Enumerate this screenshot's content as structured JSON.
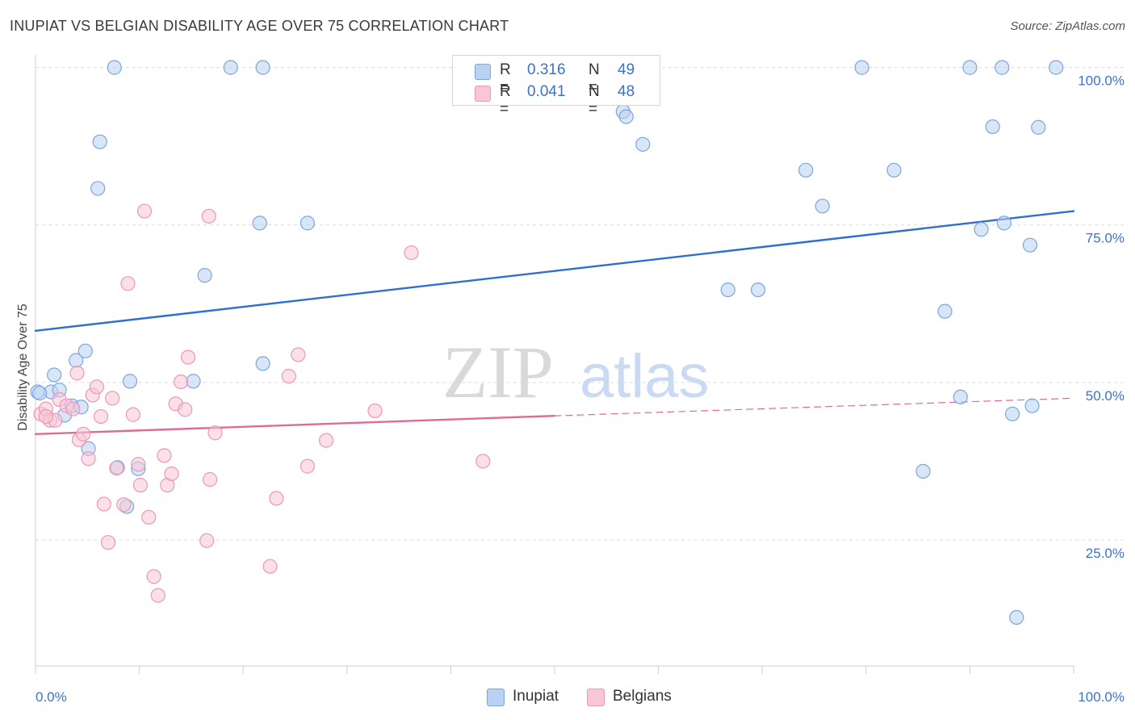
{
  "title": "INUPIAT VS BELGIAN DISABILITY AGE OVER 75 CORRELATION CHART",
  "source": "Source: ZipAtlas.com",
  "watermark": {
    "zip": "ZIP",
    "atlas": "atlas"
  },
  "colors": {
    "inupiat_fill": "#b9d1f3",
    "inupiat_stroke": "#7aa6e2",
    "inupiat_line": "#2f6fd0",
    "belgian_fill": "#f8c6d6",
    "belgian_stroke": "#ee97b6",
    "belgian_line": "#e06b96",
    "tick_text": "#3b73c9"
  },
  "stats": {
    "inupiat": {
      "r_label": "R = ",
      "r_value": "0.316",
      "n_label": "N = ",
      "n_value": "49"
    },
    "belgians": {
      "r_label": "R = ",
      "r_value": "0.041",
      "n_label": "N = ",
      "n_value": "48"
    }
  },
  "legend": {
    "inupiat": "Inupiat",
    "belgians": "Belgians"
  },
  "chart_data": {
    "type": "scatter",
    "title": "INUPIAT VS BELGIAN DISABILITY AGE OVER 75 CORRELATION CHART",
    "xlabel": "",
    "ylabel": "Disability Age Over 75",
    "xlim": [
      0,
      100
    ],
    "ylim": [
      5,
      102
    ],
    "x_tick_labels": [
      "0.0%",
      "100.0%"
    ],
    "y_ticks": [
      {
        "value": 100,
        "label": "100.0%"
      },
      {
        "value": 75,
        "label": "75.0%"
      },
      {
        "value": 50,
        "label": "50.0%"
      },
      {
        "value": 25,
        "label": "25.0%"
      }
    ],
    "grid": "horizontal dashed",
    "legend_position": "bottom-center",
    "series": [
      {
        "name": "Inupiat",
        "points": [
          [
            0.2,
            48.5
          ],
          [
            1.5,
            48.5
          ],
          [
            1.8,
            51.2
          ],
          [
            2.3,
            48.8
          ],
          [
            2.8,
            44.8
          ],
          [
            3.5,
            46.3
          ],
          [
            3.9,
            53.5
          ],
          [
            4.4,
            46.1
          ],
          [
            4.8,
            55.0
          ],
          [
            5.1,
            39.5
          ],
          [
            6.2,
            88.2
          ],
          [
            6.0,
            80.8
          ],
          [
            7.6,
            100.0
          ],
          [
            7.9,
            36.5
          ],
          [
            8.8,
            30.3
          ],
          [
            9.1,
            50.2
          ],
          [
            9.9,
            36.3
          ],
          [
            15.2,
            50.2
          ],
          [
            16.3,
            67.0
          ],
          [
            18.8,
            100.0
          ],
          [
            21.6,
            75.3
          ],
          [
            21.9,
            53.0
          ],
          [
            21.9,
            100.0
          ],
          [
            26.2,
            75.3
          ],
          [
            52.5,
            95.7
          ],
          [
            56.6,
            93.0
          ],
          [
            56.9,
            92.2
          ],
          [
            58.5,
            87.8
          ],
          [
            66.7,
            64.7
          ],
          [
            69.6,
            64.7
          ],
          [
            74.2,
            83.7
          ],
          [
            75.8,
            78.0
          ],
          [
            79.6,
            100.0
          ],
          [
            82.7,
            83.7
          ],
          [
            85.5,
            35.9
          ],
          [
            87.6,
            61.3
          ],
          [
            89.1,
            47.7
          ],
          [
            90.0,
            100.0
          ],
          [
            91.1,
            74.3
          ],
          [
            92.2,
            90.6
          ],
          [
            93.1,
            100.0
          ],
          [
            93.3,
            75.3
          ],
          [
            94.1,
            45.0
          ],
          [
            94.5,
            12.7
          ],
          [
            95.8,
            71.8
          ],
          [
            96.0,
            46.3
          ],
          [
            96.6,
            90.5
          ],
          [
            98.3,
            100.0
          ],
          [
            0.4,
            48.3
          ]
        ]
      },
      {
        "name": "Belgians",
        "points": [
          [
            0.5,
            45.0
          ],
          [
            1.0,
            45.8
          ],
          [
            1.4,
            44.0
          ],
          [
            1.9,
            44.0
          ],
          [
            2.3,
            47.3
          ],
          [
            3.0,
            46.3
          ],
          [
            3.6,
            45.8
          ],
          [
            4.0,
            51.5
          ],
          [
            4.2,
            40.9
          ],
          [
            4.6,
            41.8
          ],
          [
            5.1,
            37.9
          ],
          [
            5.5,
            48.0
          ],
          [
            5.9,
            49.3
          ],
          [
            6.3,
            44.6
          ],
          [
            6.6,
            30.7
          ],
          [
            7.0,
            24.6
          ],
          [
            7.4,
            47.5
          ],
          [
            7.8,
            36.4
          ],
          [
            8.5,
            30.6
          ],
          [
            8.9,
            65.7
          ],
          [
            9.4,
            44.9
          ],
          [
            9.9,
            37.0
          ],
          [
            10.1,
            33.7
          ],
          [
            10.5,
            77.2
          ],
          [
            10.9,
            28.6
          ],
          [
            11.4,
            19.2
          ],
          [
            11.8,
            16.2
          ],
          [
            12.4,
            38.4
          ],
          [
            12.7,
            33.7
          ],
          [
            13.1,
            35.5
          ],
          [
            13.5,
            46.6
          ],
          [
            14.0,
            50.1
          ],
          [
            14.4,
            45.7
          ],
          [
            16.5,
            24.9
          ],
          [
            16.8,
            34.6
          ],
          [
            17.3,
            42.0
          ],
          [
            16.7,
            76.4
          ],
          [
            14.7,
            54.0
          ],
          [
            22.6,
            20.8
          ],
          [
            23.2,
            31.6
          ],
          [
            24.4,
            51.0
          ],
          [
            25.3,
            54.4
          ],
          [
            26.2,
            36.7
          ],
          [
            28.0,
            40.8
          ],
          [
            32.7,
            45.5
          ],
          [
            36.2,
            70.6
          ],
          [
            43.1,
            37.5
          ],
          [
            1.0,
            44.6
          ]
        ]
      }
    ],
    "trendlines": [
      {
        "series": "Inupiat",
        "from": [
          0,
          58.2
        ],
        "to": [
          100,
          77.2
        ],
        "style": "solid"
      },
      {
        "series": "Belgians",
        "from": [
          0,
          41.8
        ],
        "to": [
          50,
          44.7
        ],
        "style": "solid"
      },
      {
        "series": "Belgians",
        "from": [
          50,
          44.7
        ],
        "to": [
          100,
          47.5
        ],
        "style": "dashed"
      }
    ]
  }
}
